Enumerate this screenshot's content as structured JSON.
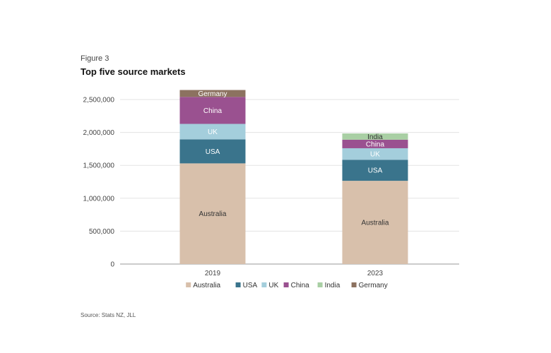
{
  "figure_label": "Figure 3",
  "title": "Top five source markets",
  "source": "Source: Stats NZ, JLL",
  "chart_data": {
    "type": "bar",
    "stacked": true,
    "categories": [
      "2019",
      "2023"
    ],
    "series": [
      {
        "name": "Australia",
        "color": "#d8c0ab",
        "values": [
          1530000,
          1265000
        ]
      },
      {
        "name": "USA",
        "color": "#3a748c",
        "values": [
          365000,
          320000
        ]
      },
      {
        "name": "UK",
        "color": "#a4cedc",
        "values": [
          235000,
          175000
        ]
      },
      {
        "name": "China",
        "color": "#9a5190",
        "values": [
          410000,
          130000
        ]
      },
      {
        "name": "India",
        "color": "#a9cfa4",
        "values": [
          0,
          95000
        ]
      },
      {
        "name": "Germany",
        "color": "#8c7260",
        "values": [
          105000,
          0
        ]
      }
    ],
    "ylim": [
      0,
      2500000
    ],
    "yticks": [
      0,
      500000,
      1000000,
      1500000,
      2000000,
      2500000
    ],
    "ytick_labels": [
      "0",
      "500,000",
      "1,000,000",
      "1,500,000",
      "2,000,000",
      "2,500,000"
    ],
    "grid": true,
    "legend_position": "bottom"
  }
}
